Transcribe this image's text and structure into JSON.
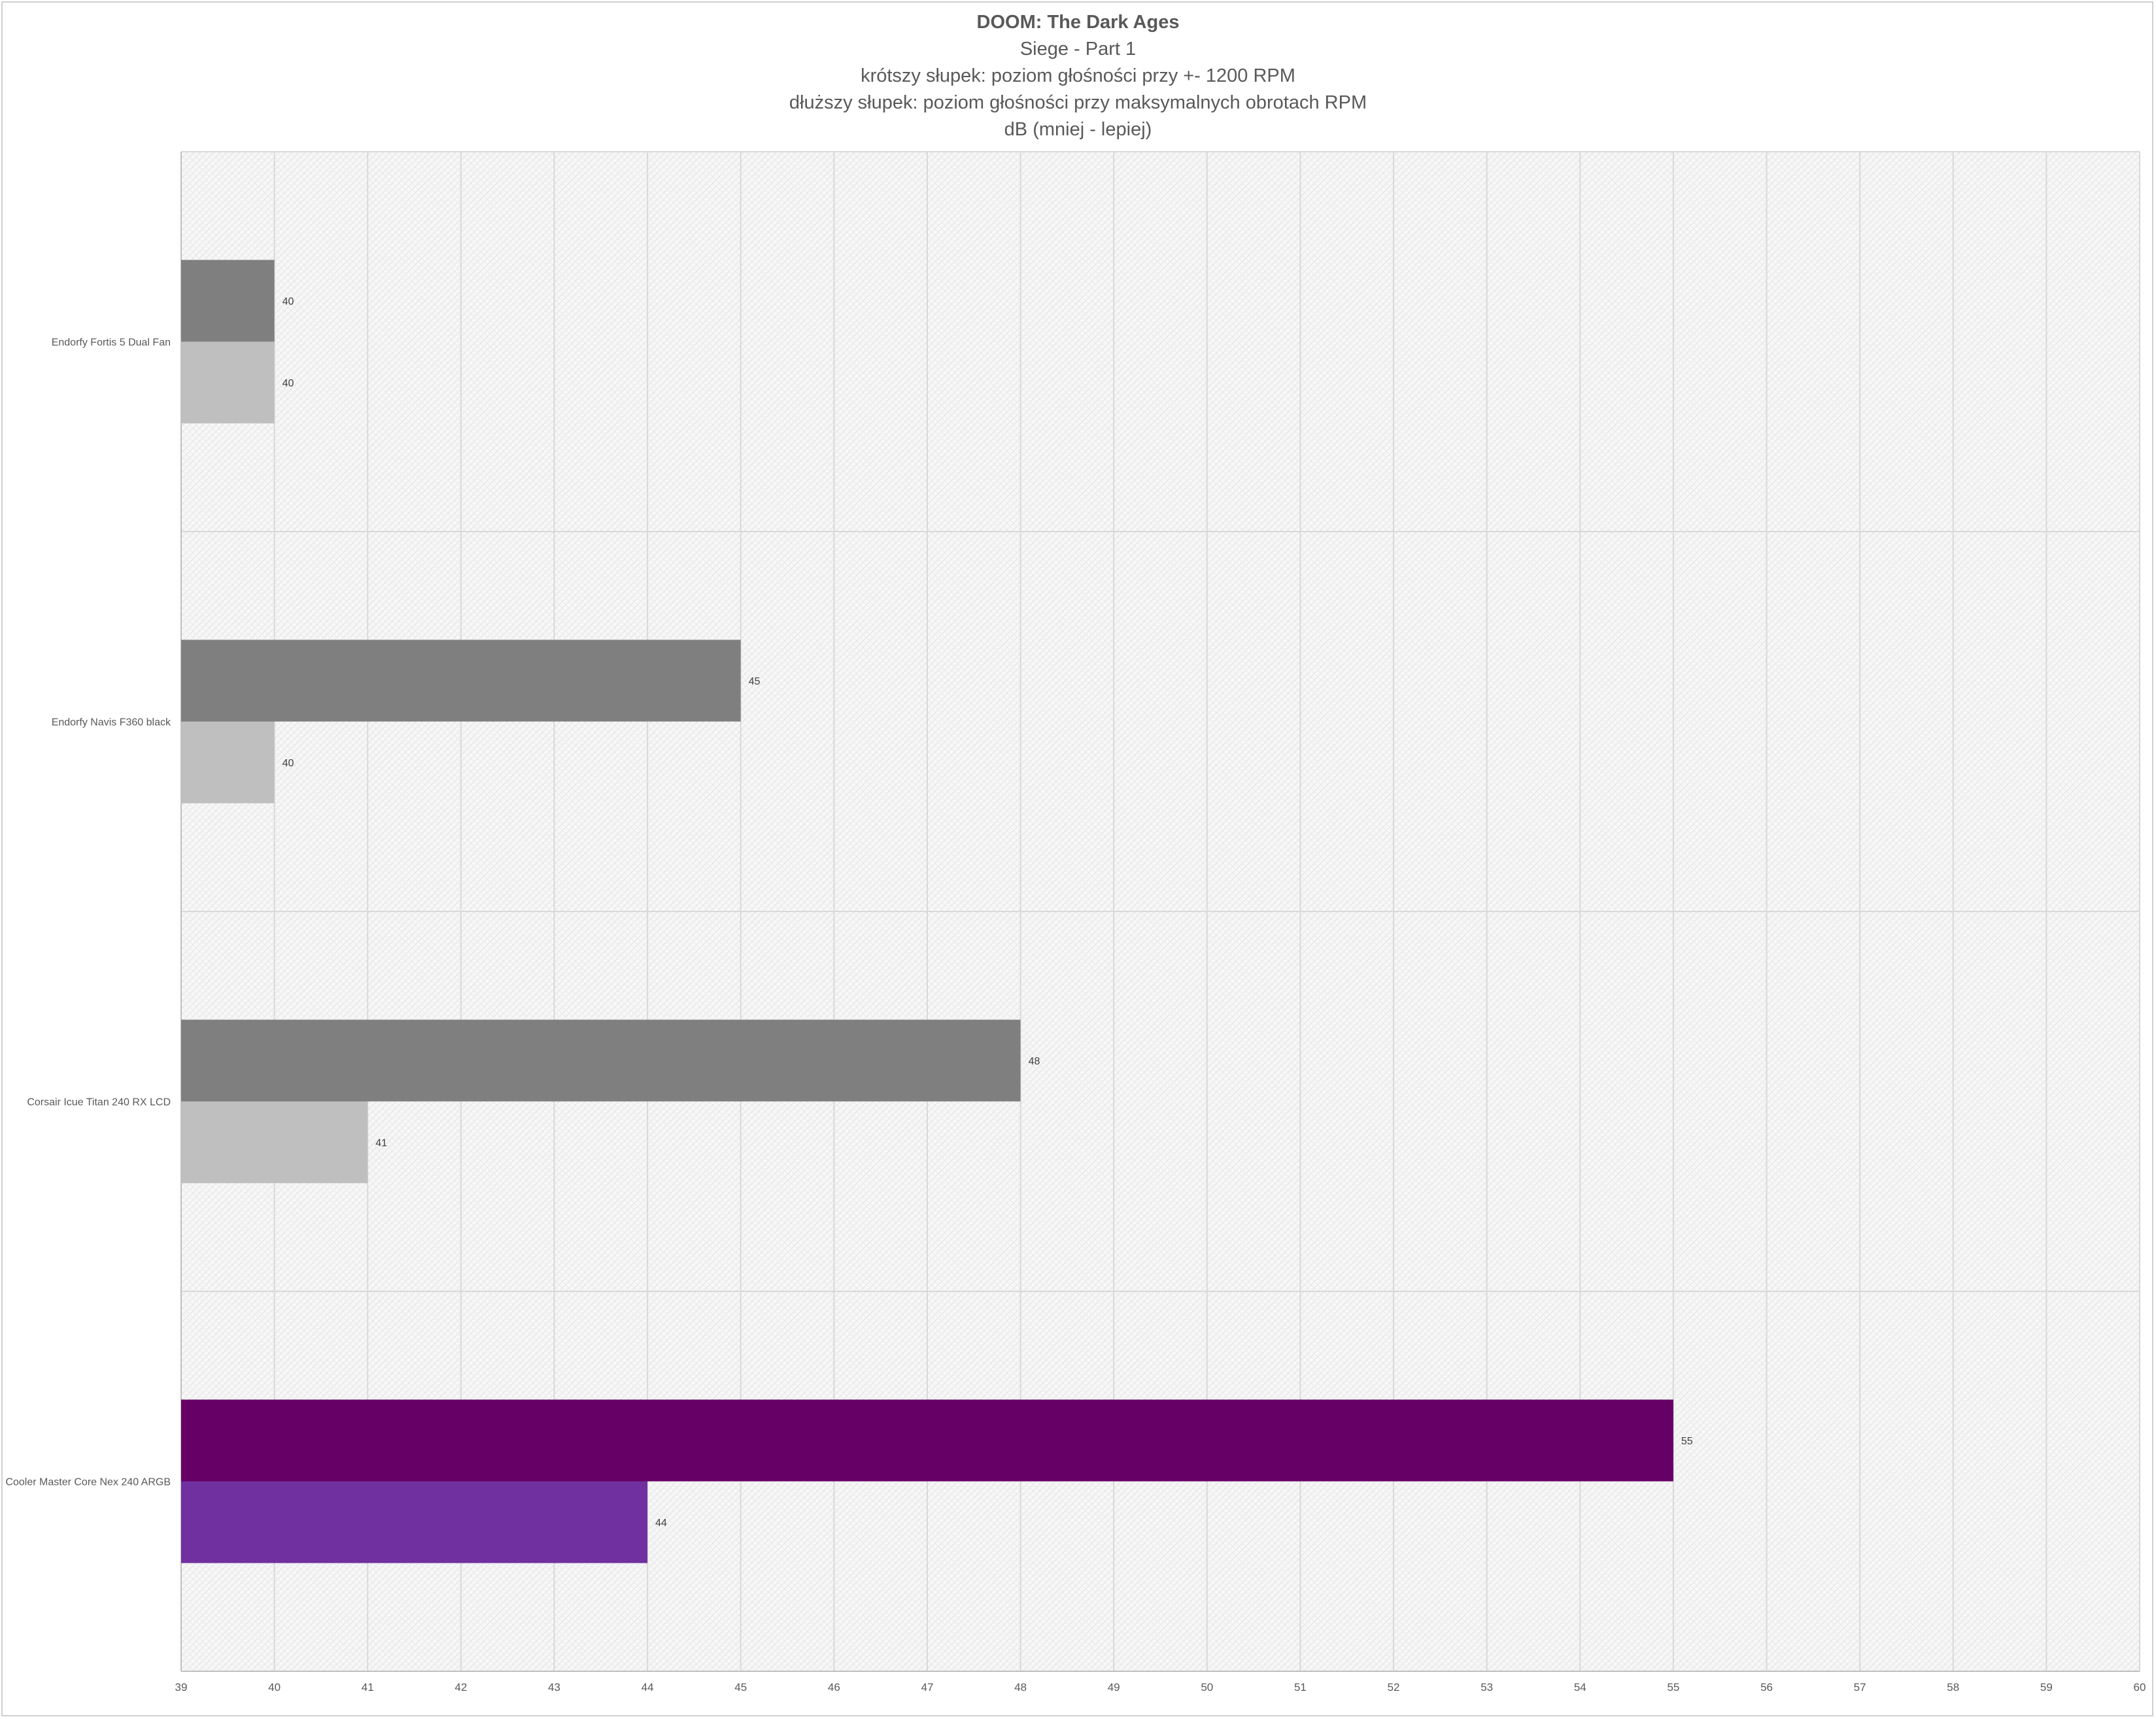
{
  "chart_data": {
    "type": "bar",
    "orientation": "horizontal",
    "title": "DOOM: The Dark Ages",
    "subtitles": [
      "Siege - Part 1",
      "krótszy słupek: poziom głośności przy +- 1200 RPM",
      "dłuższy słupek: poziom głośności przy maksymalnych obrotach RPM",
      "dB (mniej - lepiej)"
    ],
    "categories": [
      "Endorfy Fortis 5 Dual Fan",
      "Endorfy Navis F360 black",
      "Corsair Icue Titan 240 RX LCD",
      "Cooler Master Core Nex 240 ARGB"
    ],
    "series": [
      {
        "values": [
          40,
          45,
          48,
          55
        ]
      },
      {
        "values": [
          40,
          40,
          41,
          44
        ]
      }
    ],
    "bar_colors": [
      [
        "#7f7f7f",
        "#bfbfbf"
      ],
      [
        "#7f7f7f",
        "#bfbfbf"
      ],
      [
        "#7f7f7f",
        "#bfbfbf"
      ],
      [
        "#660066",
        "#7030a0"
      ]
    ],
    "xlim": [
      39,
      60
    ],
    "xticks": [
      39,
      40,
      41,
      42,
      43,
      44,
      45,
      46,
      47,
      48,
      49,
      50,
      51,
      52,
      53,
      54,
      55,
      56,
      57,
      58,
      59,
      60
    ],
    "grid": true,
    "legend": "none",
    "colors": {
      "text": "#595959",
      "grid": "#d9d9d9",
      "frame": "#d0d0d0"
    }
  }
}
